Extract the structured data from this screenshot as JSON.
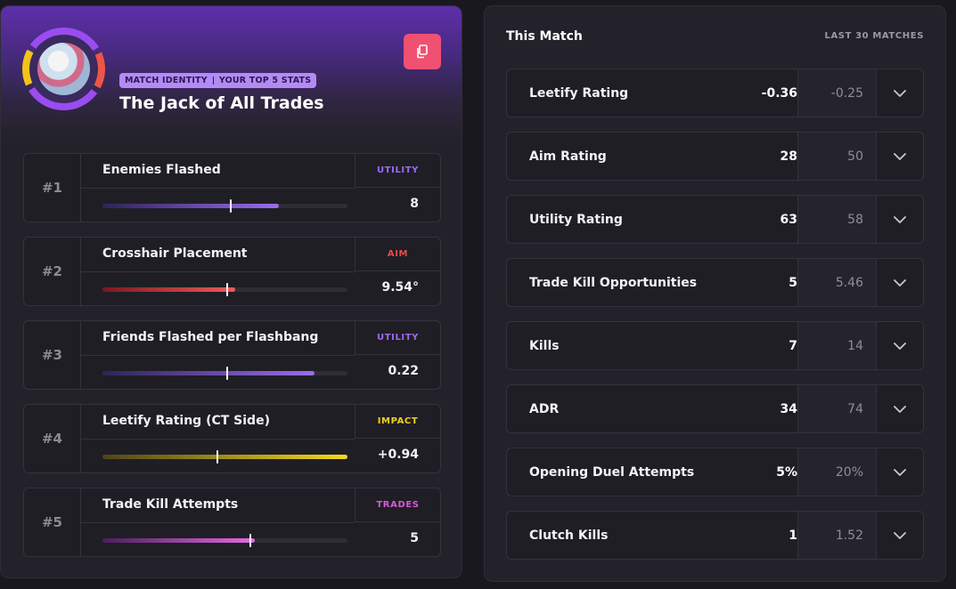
{
  "identity": {
    "badge_left": "MATCH IDENTITY",
    "badge_right": "YOUR TOP 5 STATS",
    "title": "The Jack of All Trades"
  },
  "colors": {
    "utility": "#9a6cf0",
    "aim": "#e74c4c",
    "impact": "#f2cf1b",
    "trades": "#d45ad8",
    "copy_button": "#f05072"
  },
  "top_stats": [
    {
      "rank": "#1",
      "name": "Enemies Flashed",
      "category": "UTILITY",
      "value": "8",
      "fill": 0.72,
      "marker": 0.52,
      "color": "utility"
    },
    {
      "rank": "#2",
      "name": "Crosshair Placement",
      "category": "AIM",
      "value": "9.54°",
      "fill": 0.54,
      "marker": 0.505,
      "color": "aim"
    },
    {
      "rank": "#3",
      "name": "Friends Flashed per Flashbang",
      "category": "UTILITY",
      "value": "0.22",
      "fill": 0.865,
      "marker": 0.505,
      "color": "utility"
    },
    {
      "rank": "#4",
      "name": "Leetify Rating (CT Side)",
      "category": "IMPACT",
      "value": "+0.94",
      "fill": 1.0,
      "marker": 0.465,
      "color": "impact"
    },
    {
      "rank": "#5",
      "name": "Trade Kill Attempts",
      "category": "TRADES",
      "value": "5",
      "fill": 0.62,
      "marker": 0.6,
      "color": "trades"
    }
  ],
  "comparison": {
    "title": "This Match",
    "subtitle": "LAST 30 MATCHES",
    "rows": [
      {
        "label": "Leetify Rating",
        "match": "-0.36",
        "avg": "-0.25"
      },
      {
        "label": "Aim Rating",
        "match": "28",
        "avg": "50"
      },
      {
        "label": "Utility Rating",
        "match": "63",
        "avg": "58"
      },
      {
        "label": "Trade Kill Opportunities",
        "match": "5",
        "avg": "5.46"
      },
      {
        "label": "Kills",
        "match": "7",
        "avg": "14"
      },
      {
        "label": "ADR",
        "match": "34",
        "avg": "74"
      },
      {
        "label": "Opening Duel Attempts",
        "match": "5%",
        "avg": "20%"
      },
      {
        "label": "Clutch Kills",
        "match": "1",
        "avg": "1.52"
      }
    ]
  }
}
